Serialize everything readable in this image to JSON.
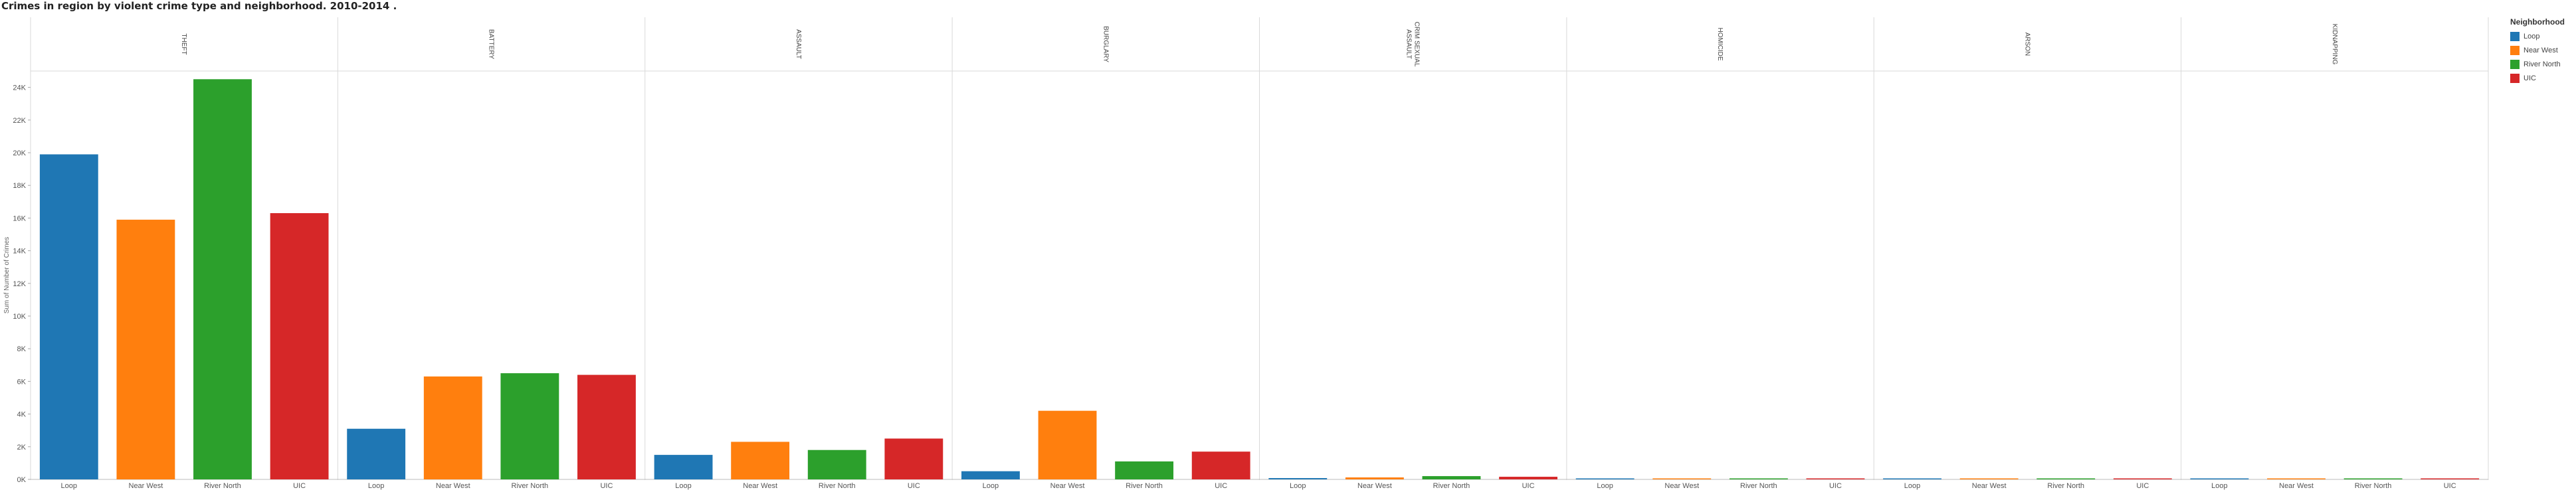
{
  "title": "Crimes in region by violent crime type and neighborhood. 2010-2014 .",
  "legend": {
    "title": "Neighborhood",
    "items": [
      {
        "label": "Loop",
        "color": "#1f77b4"
      },
      {
        "label": "Near West",
        "color": "#ff7f0e"
      },
      {
        "label": "River North",
        "color": "#2ca02c"
      },
      {
        "label": "UIC",
        "color": "#d62728"
      }
    ]
  },
  "chart_data": {
    "type": "bar",
    "title": "Crimes in region by violent crime type and neighborhood. 2010-2014 .",
    "ylabel": "Sum of Number of Crimes",
    "ylim": [
      0,
      25000
    ],
    "yticks": [
      0,
      2000,
      4000,
      6000,
      8000,
      10000,
      12000,
      14000,
      16000,
      18000,
      20000,
      22000,
      24000
    ],
    "ytick_labels": [
      "0K",
      "2K",
      "4K",
      "6K",
      "8K",
      "10K",
      "12K",
      "14K",
      "16K",
      "18K",
      "20K",
      "22K",
      "24K"
    ],
    "grid": false,
    "legend_position": "right",
    "categories": [
      "Loop",
      "Near West",
      "River North",
      "UIC"
    ],
    "panels": [
      {
        "label": "THEFT",
        "values": [
          19900,
          15900,
          24500,
          16300
        ]
      },
      {
        "label": "BATTERY",
        "values": [
          3100,
          6300,
          6500,
          6400
        ]
      },
      {
        "label": "ASSAULT",
        "values": [
          1500,
          2300,
          1800,
          2500
        ]
      },
      {
        "label": "BURGLARY",
        "values": [
          500,
          4200,
          1100,
          1700
        ]
      },
      {
        "label": "CRIM SEXUAL\nASSAULT",
        "values": [
          80,
          120,
          200,
          160
        ]
      },
      {
        "label": "HOMICIDE",
        "values": [
          5,
          30,
          5,
          40
        ]
      },
      {
        "label": "ARSON",
        "values": [
          5,
          60,
          5,
          10
        ]
      },
      {
        "label": "KIDNAPPING",
        "values": [
          5,
          40,
          10,
          20
        ]
      }
    ]
  }
}
